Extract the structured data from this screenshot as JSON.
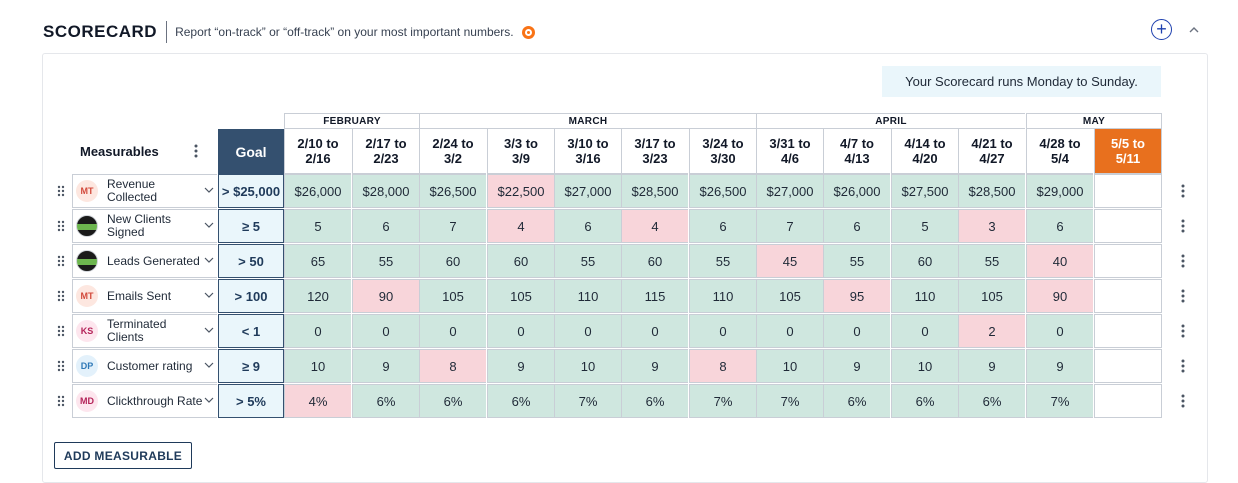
{
  "header": {
    "title": "SCORECARD",
    "subtitle": "Report “on-track” or “off-track” on your most important numbers."
  },
  "info": "Your Scorecard runs Monday to Sunday.",
  "table": {
    "measurables_label": "Measurables",
    "goal_label": "Goal",
    "months": [
      {
        "label": "FEBRUARY"
      },
      {
        "label": "MARCH"
      },
      {
        "label": "APRIL"
      },
      {
        "label": "MAY"
      }
    ],
    "weeks": [
      {
        "l1": "2/10 to",
        "l2": "2/16"
      },
      {
        "l1": "2/17 to",
        "l2": "2/23"
      },
      {
        "l1": "2/24 to",
        "l2": "3/2"
      },
      {
        "l1": "3/3 to",
        "l2": "3/9"
      },
      {
        "l1": "3/10 to",
        "l2": "3/16"
      },
      {
        "l1": "3/17 to",
        "l2": "3/23"
      },
      {
        "l1": "3/24 to",
        "l2": "3/30"
      },
      {
        "l1": "3/31 to",
        "l2": "4/6"
      },
      {
        "l1": "4/7 to",
        "l2": "4/13"
      },
      {
        "l1": "4/14 to",
        "l2": "4/20"
      },
      {
        "l1": "4/21 to",
        "l2": "4/27"
      },
      {
        "l1": "4/28 to",
        "l2": "5/4"
      },
      {
        "l1": "5/5 to",
        "l2": "5/11"
      }
    ],
    "rows": [
      {
        "owner": "MT",
        "owner_type": "mt",
        "name": "Revenue Collected",
        "goal": "> $25,000",
        "values": [
          "$26,000",
          "$28,000",
          "$26,500",
          "$22,500",
          "$27,000",
          "$28,500",
          "$26,500",
          "$27,000",
          "$26,000",
          "$27,500",
          "$28,500",
          "$29,000",
          ""
        ],
        "status": [
          "on",
          "on",
          "on",
          "off",
          "on",
          "on",
          "on",
          "on",
          "on",
          "on",
          "on",
          "on",
          "empty"
        ]
      },
      {
        "owner": "",
        "owner_type": "img",
        "name": "New Clients Signed",
        "goal": "≥ 5",
        "values": [
          "5",
          "6",
          "7",
          "4",
          "6",
          "4",
          "6",
          "7",
          "6",
          "5",
          "3",
          "6",
          ""
        ],
        "status": [
          "on",
          "on",
          "on",
          "off",
          "on",
          "off",
          "on",
          "on",
          "on",
          "on",
          "off",
          "on",
          "empty"
        ]
      },
      {
        "owner": "",
        "owner_type": "img",
        "name": "Leads Generated",
        "goal": "> 50",
        "values": [
          "65",
          "55",
          "60",
          "60",
          "55",
          "60",
          "55",
          "45",
          "55",
          "60",
          "55",
          "40",
          ""
        ],
        "status": [
          "on",
          "on",
          "on",
          "on",
          "on",
          "on",
          "on",
          "off",
          "on",
          "on",
          "on",
          "off",
          "empty"
        ]
      },
      {
        "owner": "MT",
        "owner_type": "mt",
        "name": "Emails Sent",
        "goal": "> 100",
        "values": [
          "120",
          "90",
          "105",
          "105",
          "110",
          "115",
          "110",
          "105",
          "95",
          "110",
          "105",
          "90",
          ""
        ],
        "status": [
          "on",
          "off",
          "on",
          "on",
          "on",
          "on",
          "on",
          "on",
          "off",
          "on",
          "on",
          "off",
          "empty"
        ]
      },
      {
        "owner": "KS",
        "owner_type": "ks",
        "name": "Terminated Clients",
        "goal": "< 1",
        "values": [
          "0",
          "0",
          "0",
          "0",
          "0",
          "0",
          "0",
          "0",
          "0",
          "0",
          "2",
          "0",
          ""
        ],
        "status": [
          "on",
          "on",
          "on",
          "on",
          "on",
          "on",
          "on",
          "on",
          "on",
          "on",
          "off",
          "on",
          "empty"
        ]
      },
      {
        "owner": "DP",
        "owner_type": "dp",
        "name": "Customer rating",
        "goal": "≥ 9",
        "values": [
          "10",
          "9",
          "8",
          "9",
          "10",
          "9",
          "8",
          "10",
          "9",
          "10",
          "9",
          "9",
          ""
        ],
        "status": [
          "on",
          "on",
          "off",
          "on",
          "on",
          "on",
          "off",
          "on",
          "on",
          "on",
          "on",
          "on",
          "empty"
        ]
      },
      {
        "owner": "MD",
        "owner_type": "md",
        "name": "Clickthrough Rate",
        "goal": "> 5%",
        "values": [
          "4%",
          "6%",
          "6%",
          "6%",
          "7%",
          "6%",
          "7%",
          "7%",
          "6%",
          "6%",
          "6%",
          "7%",
          ""
        ],
        "status": [
          "off",
          "on",
          "on",
          "on",
          "on",
          "on",
          "on",
          "on",
          "on",
          "on",
          "on",
          "on",
          "empty"
        ]
      }
    ]
  },
  "add_button": "ADD MEASURABLE",
  "colors": {
    "on_track": "#cfe7df",
    "off_track": "#f8d5da",
    "goal_header": "#34506f",
    "current_week": "#e8701e"
  },
  "icons": {
    "add": "plus-circle-icon",
    "collapse": "chevron-up-icon",
    "help": "help-icon",
    "drag": "drag-handle-icon",
    "menu": "kebab-menu-icon"
  }
}
